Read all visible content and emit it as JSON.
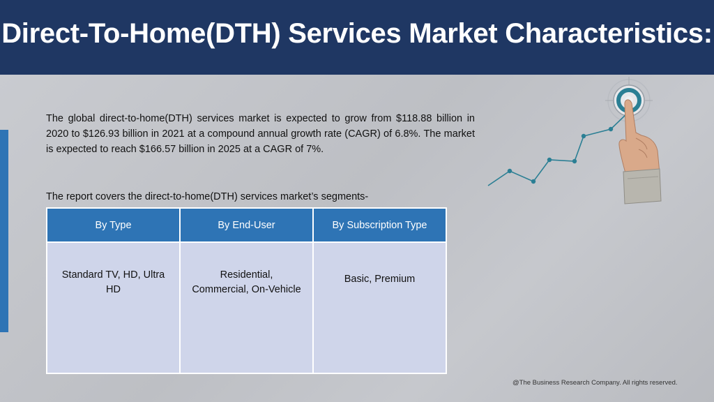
{
  "header": {
    "title": "Direct-To-Home(DTH) Services Market Characteristics:",
    "background": "#1f3763"
  },
  "main": {
    "paragraph": "The global direct-to-home(DTH) services market is expected to grow from $118.88 billion in 2020 to $126.93 billion in 2021 at a compound annual growth rate (CAGR) of 6.8%. The market is expected to reach $166.57 billion in 2025 at a CAGR of 7%.",
    "segments_intro": "The report covers the direct-to-home(DTH) services market’s segments-"
  },
  "segments_table": {
    "headers": [
      "By Type",
      "By End-User",
      "By Subscription Type"
    ],
    "cells": [
      "Standard TV, HD, Ultra HD",
      "Residential, Commercial, On-Vehicle",
      "Basic, Premium"
    ],
    "header_color": "#2e74b5",
    "cell_color": "#cfd5ea"
  },
  "illustration": {
    "icon": "hand-pointing-target-growth-chart-icon",
    "accent": "#2b7f94"
  },
  "footer": {
    "copyright": "@The Business Research Company. All rights reserved."
  }
}
